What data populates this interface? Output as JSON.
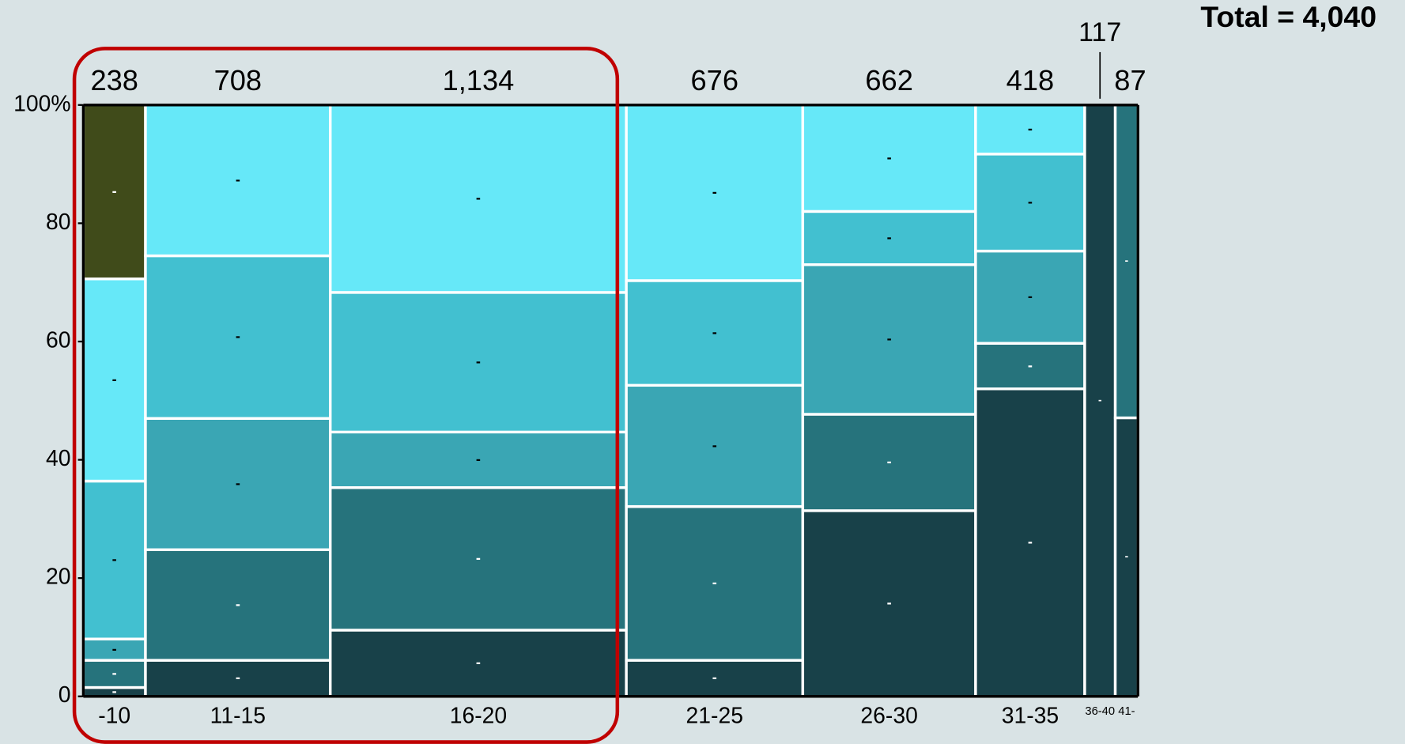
{
  "chart_data": {
    "type": "mosaic",
    "total_label": "Total = 4,040",
    "categories": [
      "-10",
      "11-15",
      "16-20",
      "21-25",
      "26-30",
      "31-35",
      "36-40",
      "41-"
    ],
    "column_totals": [
      238,
      708,
      1134,
      676,
      662,
      418,
      117,
      87
    ],
    "column_total_labels": [
      "238",
      "708",
      "1,134",
      "676",
      "662",
      "418",
      "117",
      "87"
    ],
    "series": [
      {
        "color": "#184149",
        "values": [
          1.5,
          6.1,
          11.2,
          6.1,
          31.4,
          52.0,
          100,
          47.1
        ],
        "value_labels": [
          "-",
          "-",
          "-",
          "-",
          "-",
          "-",
          "-",
          "-"
        ]
      },
      {
        "color": "#26737c",
        "values": [
          4.6,
          18.7,
          24.1,
          26.0,
          16.3,
          7.7,
          null,
          52.9
        ],
        "value_labels": [
          "-",
          "-",
          "-",
          "-",
          "-",
          "-",
          null,
          "-"
        ]
      },
      {
        "color": "#3aa6b4",
        "values": [
          3.6,
          22.2,
          9.4,
          20.5,
          25.3,
          15.6,
          null,
          null
        ],
        "value_labels": [
          "-",
          "-",
          "-",
          "-",
          "-",
          "-",
          null,
          null
        ]
      },
      {
        "color": "#42c0d0",
        "values": [
          26.7,
          27.5,
          23.6,
          17.7,
          9.0,
          16.4,
          null,
          null
        ],
        "value_labels": [
          "-",
          "-",
          "-",
          "-",
          "-",
          "-",
          null,
          null
        ]
      },
      {
        "color": "#66e8f8",
        "values": [
          34.2,
          25.5,
          31.7,
          29.7,
          18.0,
          8.3,
          null,
          null
        ],
        "value_labels": [
          "-",
          "-",
          "-",
          "-",
          "-",
          "-",
          null,
          null
        ]
      },
      {
        "color": "#404b1a",
        "values": [
          29.4,
          null,
          null,
          null,
          null,
          null,
          null,
          null
        ],
        "value_labels": [
          "-",
          null,
          null,
          null,
          null,
          null,
          null,
          null
        ]
      }
    ],
    "ylim": [
      0,
      100
    ],
    "yticks": [
      0,
      20,
      40,
      60,
      80,
      {
        "value": 100,
        "label": "100%"
      }
    ]
  }
}
